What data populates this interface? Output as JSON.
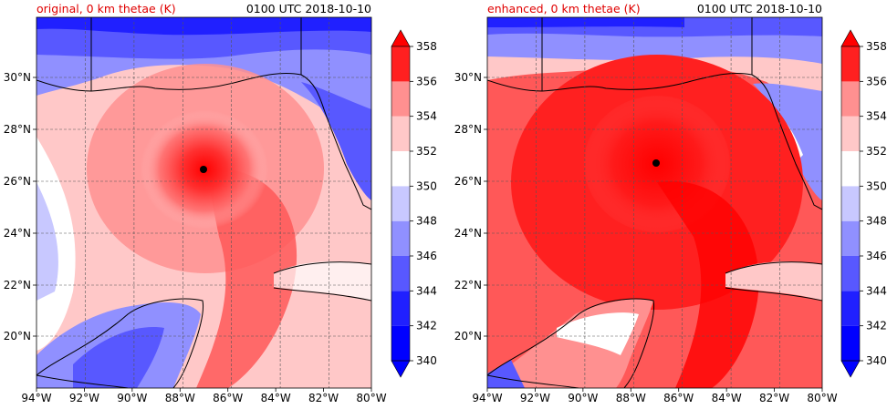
{
  "panels": [
    {
      "title": "original, 0 km thetae (K)",
      "time": "0100 UTC 2018-10-10",
      "title_color": "#e00000",
      "center_marker": {
        "lon": -87.1,
        "lat": 26.4
      },
      "mode": "original"
    },
    {
      "title": "enhanced, 0 km thetae (K)",
      "time": "0100 UTC 2018-10-10",
      "title_color": "#e00000",
      "center_marker": {
        "lon": -87.0,
        "lat": 26.7
      },
      "mode": "enhanced"
    }
  ],
  "map": {
    "lon_range": [
      -94,
      -80
    ],
    "lat_range": [
      18.2,
      32.0
    ],
    "lon_ticks": [
      "94°W",
      "92°W",
      "90°W",
      "88°W",
      "86°W",
      "84°W",
      "82°W",
      "80°W"
    ],
    "lat_ticks": [
      "20°N",
      "22°N",
      "24°N",
      "26°N",
      "28°N",
      "30°N"
    ],
    "gridlines": true
  },
  "colorbar": {
    "levels": [
      "340",
      "342",
      "344",
      "346",
      "348",
      "350",
      "352",
      "354",
      "356",
      "358"
    ],
    "colors": [
      "#0000ff",
      "#2020ff",
      "#5858ff",
      "#9090ff",
      "#c8c8ff",
      "#ffffff",
      "#ffc8c8",
      "#ff9090",
      "#ff5858",
      "#ff2020"
    ],
    "extend_low": "#0000ff",
    "extend_high": "#ff0000"
  }
}
